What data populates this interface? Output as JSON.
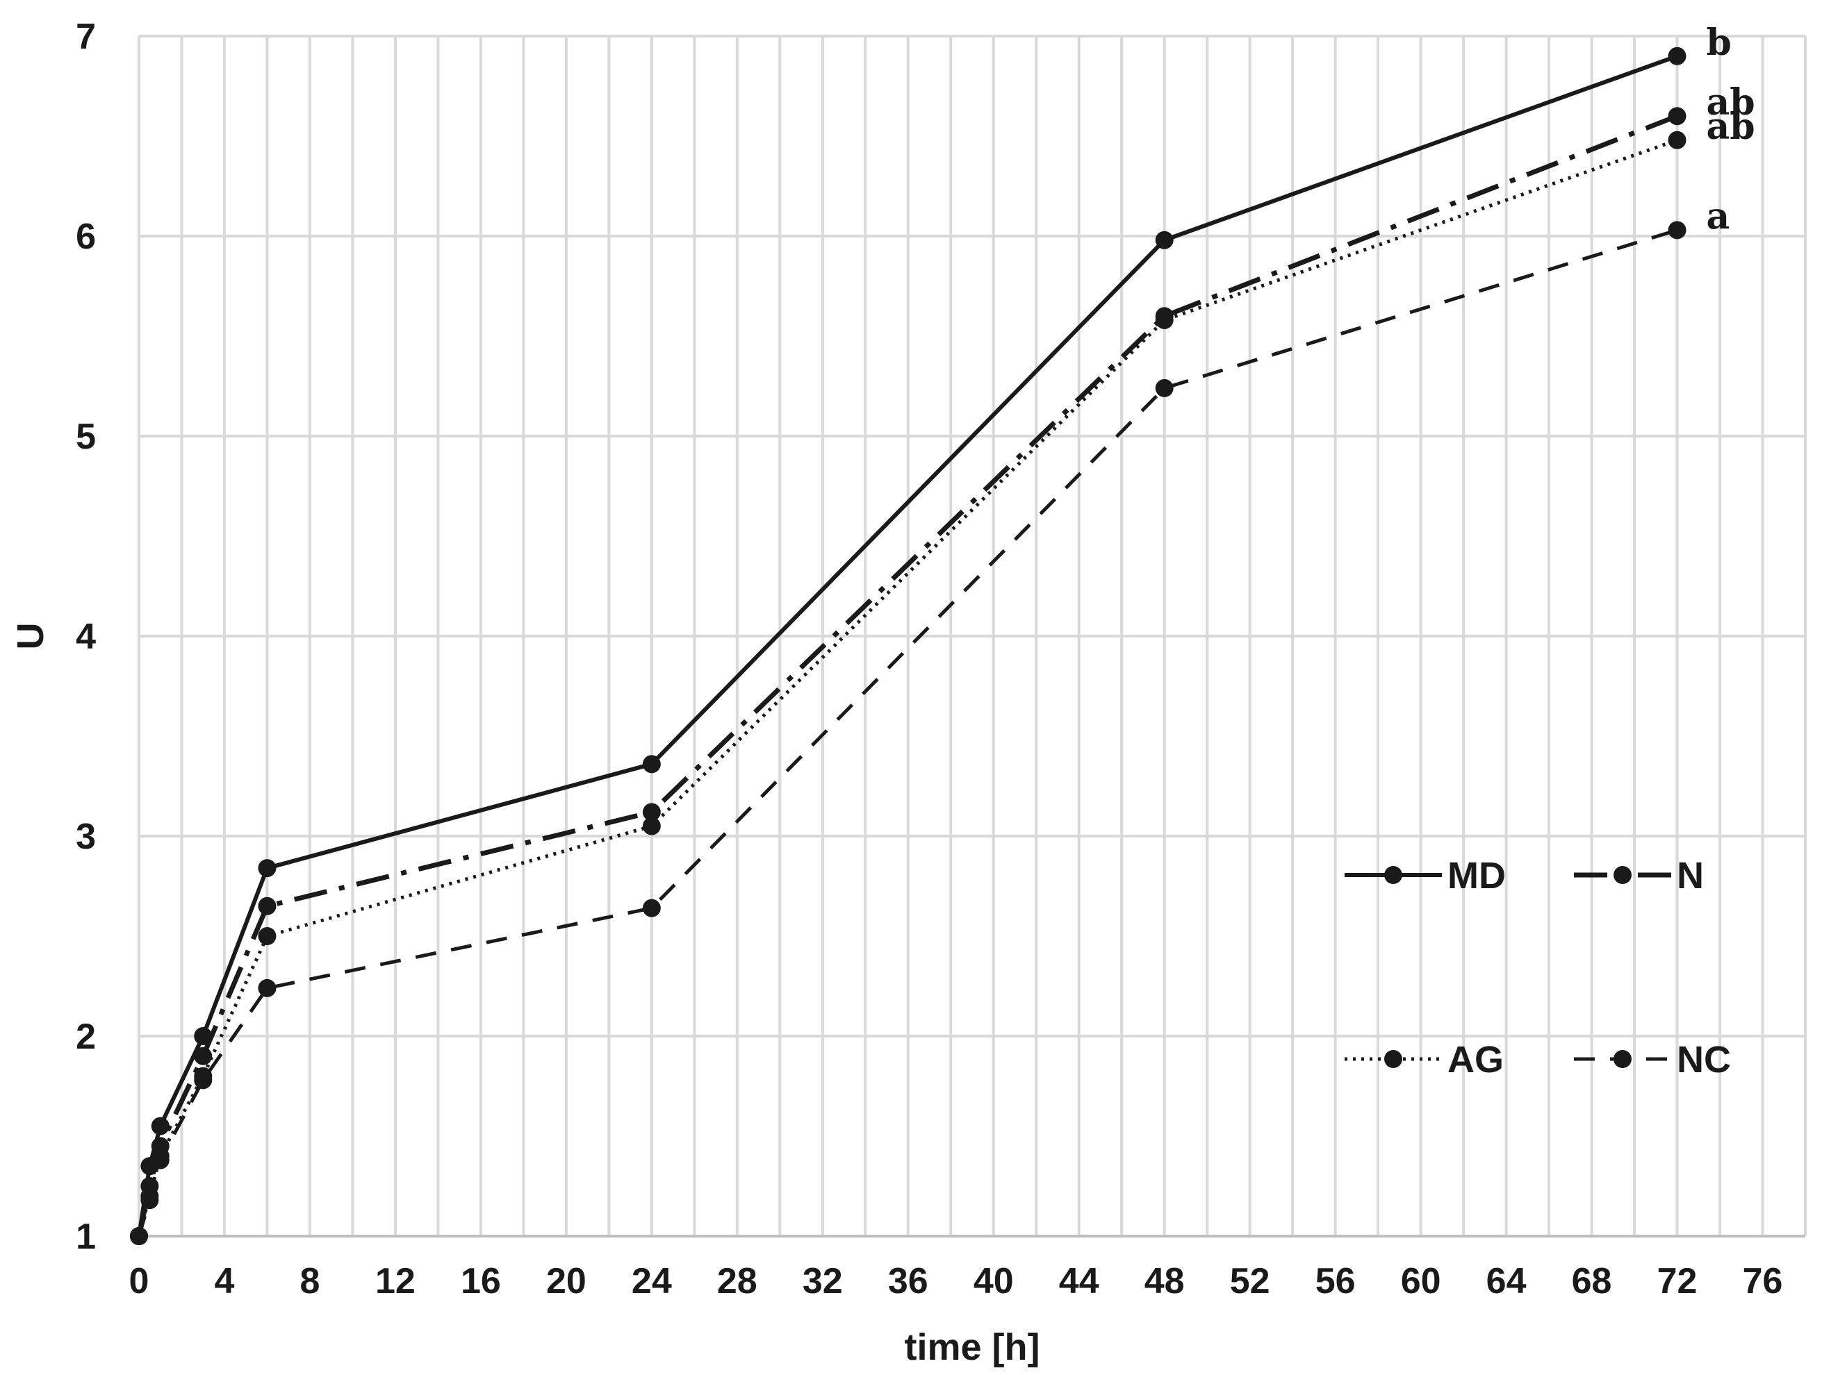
{
  "chart_data": {
    "type": "line",
    "title": "",
    "xlabel": "time [h]",
    "ylabel": "U",
    "xlim": [
      0,
      78
    ],
    "ylim": [
      1,
      7
    ],
    "x_ticks": [
      "0",
      "4",
      "8",
      "12",
      "16",
      "20",
      "24",
      "28",
      "32",
      "36",
      "40",
      "44",
      "48",
      "52",
      "56",
      "60",
      "64",
      "68",
      "72",
      "76"
    ],
    "y_ticks": [
      "1",
      "2",
      "3",
      "4",
      "5",
      "6",
      "7"
    ],
    "grid": true,
    "legend_position": "right",
    "x": [
      0,
      0.5,
      1,
      3,
      6,
      24,
      48,
      72
    ],
    "series": [
      {
        "name": "MD",
        "style": "solid",
        "values": [
          1.0,
          1.35,
          1.55,
          2.0,
          2.84,
          3.36,
          5.98,
          6.9
        ],
        "end_label": "b"
      },
      {
        "name": "N",
        "style": "dashdot",
        "values": [
          1.0,
          1.25,
          1.45,
          1.9,
          2.65,
          3.12,
          5.6,
          6.6
        ],
        "end_label": "ab"
      },
      {
        "name": "AG",
        "style": "dotted",
        "values": [
          1.0,
          1.2,
          1.4,
          1.8,
          2.5,
          3.05,
          5.58,
          6.48
        ],
        "end_label": "ab"
      },
      {
        "name": "NC",
        "style": "dashed",
        "values": [
          1.0,
          1.18,
          1.38,
          1.78,
          2.24,
          2.64,
          5.24,
          6.03
        ],
        "end_label": "a"
      }
    ],
    "colors": {
      "line": "#1a1a1a",
      "grid": "#d9d9d9"
    }
  }
}
